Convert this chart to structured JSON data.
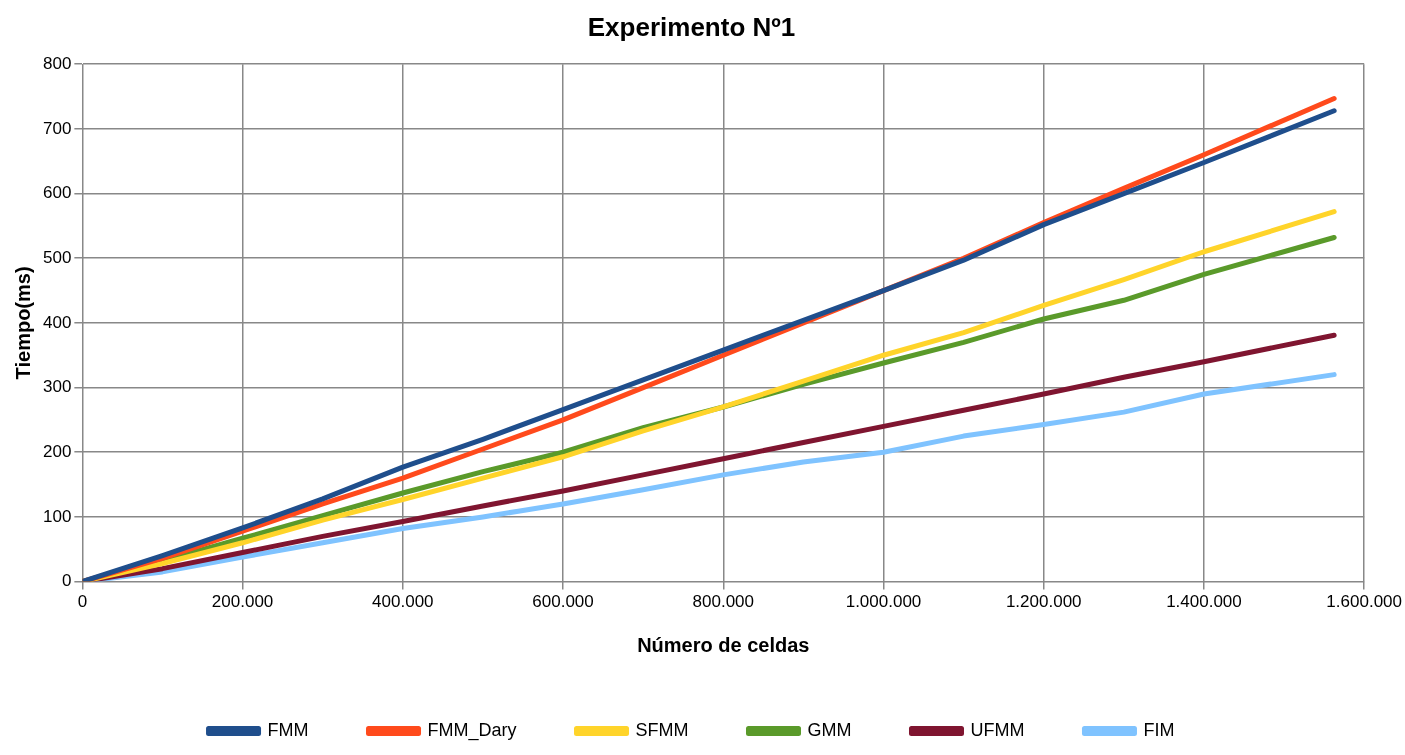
{
  "chart_data": {
    "type": "line",
    "title": "Experimento Nº1",
    "xlabel": "Número de celdas",
    "ylabel": "Tiempo(ms)",
    "x": [
      0,
      100000,
      200000,
      300000,
      400000,
      500000,
      600000,
      700000,
      800000,
      900000,
      1000000,
      1100000,
      1200000,
      1300000,
      1400000,
      1562500
    ],
    "series": [
      {
        "name": "FMM",
        "color": "#1f4e8c",
        "values": [
          0,
          40,
          83,
          128,
          177,
          220,
          266,
          312,
          358,
          404,
          450,
          497,
          552,
          600,
          648,
          728
        ]
      },
      {
        "name": "FMM_Dary",
        "color": "#ff4a1c",
        "values": [
          0,
          36,
          78,
          120,
          160,
          205,
          250,
          300,
          350,
          400,
          450,
          500,
          555,
          608,
          660,
          747
        ]
      },
      {
        "name": "SFMM",
        "color": "#ffd42a",
        "values": [
          0,
          28,
          60,
          95,
          127,
          160,
          193,
          233,
          270,
          310,
          350,
          385,
          427,
          467,
          510,
          572
        ]
      },
      {
        "name": "GMM",
        "color": "#5a9a2a",
        "values": [
          0,
          32,
          67,
          102,
          137,
          170,
          200,
          238,
          270,
          305,
          338,
          370,
          406,
          435,
          475,
          532
        ]
      },
      {
        "name": "UFMM",
        "color": "#7f1530",
        "values": [
          0,
          20,
          45,
          70,
          93,
          117,
          140,
          165,
          190,
          215,
          240,
          265,
          290,
          316,
          340,
          381
        ]
      },
      {
        "name": "FIM",
        "color": "#7fc3ff",
        "values": [
          0,
          15,
          38,
          60,
          82,
          100,
          120,
          142,
          165,
          185,
          200,
          225,
          243,
          262,
          290,
          320
        ]
      }
    ],
    "xlim": [
      0,
      1600000
    ],
    "xticks": [
      0,
      {
        "value": 200000,
        "label": "200.000"
      },
      {
        "value": 400000,
        "label": "400.000"
      },
      {
        "value": 600000,
        "label": "600.000"
      },
      {
        "value": 800000,
        "label": "800.000"
      },
      {
        "value": 1000000,
        "label": "1.000.000"
      },
      {
        "value": 1200000,
        "label": "1.200.000"
      },
      {
        "value": 1400000,
        "label": "1.400.000"
      },
      {
        "value": 1600000,
        "label": "1.600.000"
      }
    ],
    "ylim": [
      0,
      800
    ],
    "yticks": [
      0,
      100,
      200,
      300,
      400,
      500,
      600,
      700,
      800
    ],
    "grid": true,
    "legend": "bottom",
    "marker": "none",
    "line_style": "solid"
  }
}
